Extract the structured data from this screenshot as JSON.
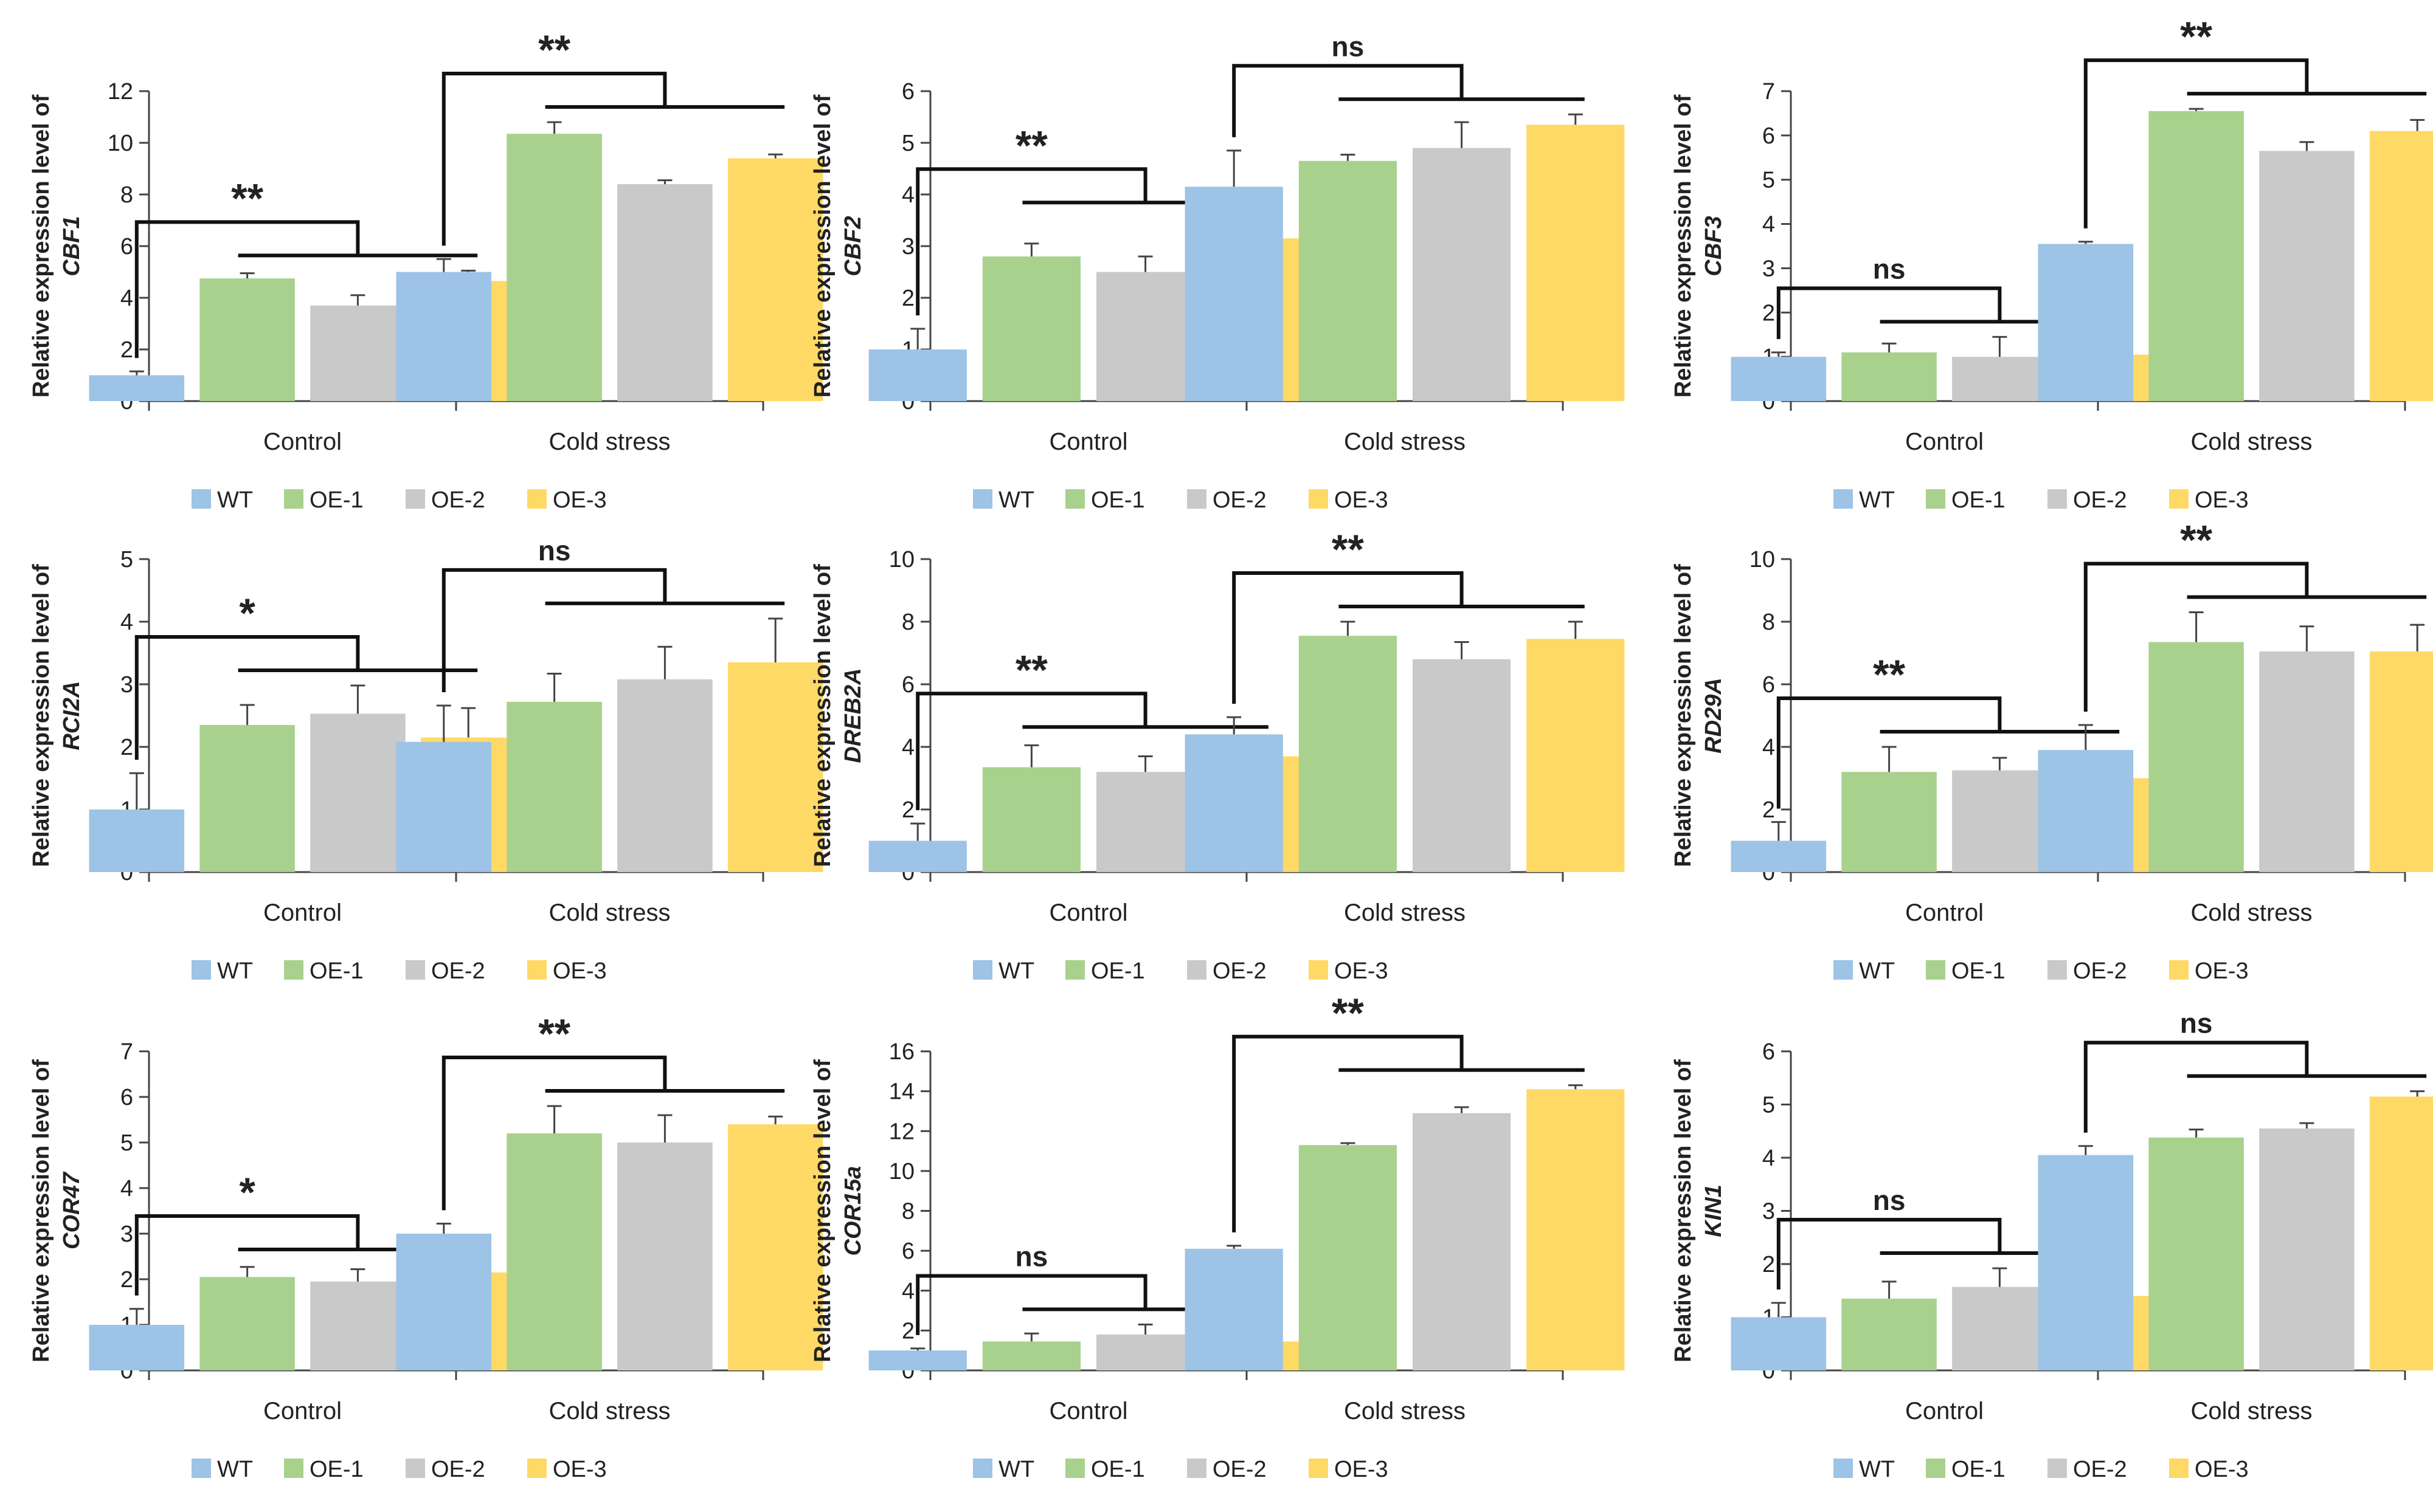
{
  "figure": {
    "groups": [
      "Control",
      "Cold stress"
    ],
    "legend": [
      "WT",
      "OE-1",
      "OE-2",
      "OE-3"
    ],
    "ylabel_prefix": "Relative expression level of"
  },
  "colors": {
    "WT": "#9dc3e6",
    "OE-1": "#a9d18e",
    "OE-2": "#c9c9c9",
    "OE-3": "#ffd966",
    "axis": "#444444",
    "text": "#222222"
  },
  "chart_data": [
    {
      "type": "bar",
      "gene": "CBF1",
      "ylim": [
        0,
        12
      ],
      "yticks": [
        0,
        2,
        4,
        6,
        8,
        10,
        12
      ],
      "categories": [
        "Control",
        "Cold stress"
      ],
      "series": [
        {
          "name": "WT",
          "values": [
            1.0,
            5.0
          ],
          "errors": [
            0.15,
            0.5
          ]
        },
        {
          "name": "OE-1",
          "values": [
            4.75,
            10.35
          ],
          "errors": [
            0.2,
            0.45
          ]
        },
        {
          "name": "OE-2",
          "values": [
            3.7,
            8.4
          ],
          "errors": [
            0.4,
            0.15
          ]
        },
        {
          "name": "OE-3",
          "values": [
            4.65,
            9.4
          ],
          "errors": [
            0.4,
            0.15
          ]
        }
      ],
      "significance": [
        "**",
        "**"
      ]
    },
    {
      "type": "bar",
      "gene": "CBF2",
      "ylim": [
        0,
        6
      ],
      "yticks": [
        0,
        1,
        2,
        3,
        4,
        5,
        6
      ],
      "categories": [
        "Control",
        "Cold stress"
      ],
      "series": [
        {
          "name": "WT",
          "values": [
            1.0,
            4.15
          ],
          "errors": [
            0.4,
            0.7
          ]
        },
        {
          "name": "OE-1",
          "values": [
            2.8,
            4.65
          ],
          "errors": [
            0.25,
            0.12
          ]
        },
        {
          "name": "OE-2",
          "values": [
            2.5,
            4.9
          ],
          "errors": [
            0.3,
            0.5
          ]
        },
        {
          "name": "OE-3",
          "values": [
            3.15,
            5.35
          ],
          "errors": [
            0.4,
            0.2
          ]
        }
      ],
      "significance": [
        "**",
        "ns"
      ]
    },
    {
      "type": "bar",
      "gene": "CBF3",
      "ylim": [
        0,
        7
      ],
      "yticks": [
        0,
        1,
        2,
        3,
        4,
        5,
        6,
        7
      ],
      "categories": [
        "Control",
        "Cold stress"
      ],
      "series": [
        {
          "name": "WT",
          "values": [
            1.0,
            3.55
          ],
          "errors": [
            0.1,
            0.05
          ]
        },
        {
          "name": "OE-1",
          "values": [
            1.1,
            6.55
          ],
          "errors": [
            0.2,
            0.05
          ]
        },
        {
          "name": "OE-2",
          "values": [
            1.0,
            5.65
          ],
          "errors": [
            0.45,
            0.2
          ]
        },
        {
          "name": "OE-3",
          "values": [
            1.05,
            6.1
          ],
          "errors": [
            0.25,
            0.25
          ]
        }
      ],
      "significance": [
        "ns",
        "**"
      ]
    },
    {
      "type": "bar",
      "gene": "RCI2A",
      "ylim": [
        0,
        5
      ],
      "yticks": [
        0,
        1,
        2,
        3,
        4,
        5
      ],
      "categories": [
        "Control",
        "Cold stress"
      ],
      "series": [
        {
          "name": "WT",
          "values": [
            1.0,
            2.08
          ],
          "errors": [
            0.58,
            0.58
          ]
        },
        {
          "name": "OE-1",
          "values": [
            2.35,
            2.72
          ],
          "errors": [
            0.32,
            0.45
          ]
        },
        {
          "name": "OE-2",
          "values": [
            2.53,
            3.08
          ],
          "errors": [
            0.45,
            0.52
          ]
        },
        {
          "name": "OE-3",
          "values": [
            2.15,
            3.35
          ],
          "errors": [
            0.47,
            0.7
          ]
        }
      ],
      "significance": [
        "*",
        "ns"
      ]
    },
    {
      "type": "bar",
      "gene": "DREB2A",
      "ylim": [
        0,
        10
      ],
      "yticks": [
        0,
        2,
        4,
        6,
        8,
        10
      ],
      "categories": [
        "Control",
        "Cold stress"
      ],
      "series": [
        {
          "name": "WT",
          "values": [
            1.0,
            4.4
          ],
          "errors": [
            0.55,
            0.55
          ]
        },
        {
          "name": "OE-1",
          "values": [
            3.35,
            7.55
          ],
          "errors": [
            0.7,
            0.45
          ]
        },
        {
          "name": "OE-2",
          "values": [
            3.2,
            6.8
          ],
          "errors": [
            0.5,
            0.55
          ]
        },
        {
          "name": "OE-3",
          "values": [
            3.7,
            7.45
          ],
          "errors": [
            0.45,
            0.55
          ]
        }
      ],
      "significance": [
        "**",
        "**"
      ]
    },
    {
      "type": "bar",
      "gene": "RD29A",
      "ylim": [
        0,
        10
      ],
      "yticks": [
        0,
        2,
        4,
        6,
        8,
        10
      ],
      "categories": [
        "Control",
        "Cold stress"
      ],
      "series": [
        {
          "name": "WT",
          "values": [
            1.0,
            3.9
          ],
          "errors": [
            0.6,
            0.8
          ]
        },
        {
          "name": "OE-1",
          "values": [
            3.2,
            7.35
          ],
          "errors": [
            0.8,
            0.95
          ]
        },
        {
          "name": "OE-2",
          "values": [
            3.25,
            7.05
          ],
          "errors": [
            0.4,
            0.8
          ]
        },
        {
          "name": "OE-3",
          "values": [
            3.0,
            7.05
          ],
          "errors": [
            0.5,
            0.85
          ]
        }
      ],
      "significance": [
        "**",
        "**"
      ]
    },
    {
      "type": "bar",
      "gene": "COR47",
      "ylim": [
        0,
        7
      ],
      "yticks": [
        0,
        1,
        2,
        3,
        4,
        5,
        6,
        7
      ],
      "categories": [
        "Control",
        "Cold stress"
      ],
      "series": [
        {
          "name": "WT",
          "values": [
            1.0,
            3.0
          ],
          "errors": [
            0.35,
            0.22
          ]
        },
        {
          "name": "OE-1",
          "values": [
            2.05,
            5.2
          ],
          "errors": [
            0.22,
            0.6
          ]
        },
        {
          "name": "OE-2",
          "values": [
            1.95,
            5.0
          ],
          "errors": [
            0.27,
            0.6
          ]
        },
        {
          "name": "OE-3",
          "values": [
            2.15,
            5.4
          ],
          "errors": [
            0.17,
            0.17
          ]
        }
      ],
      "significance": [
        "*",
        "**"
      ]
    },
    {
      "type": "bar",
      "gene": "COR15a",
      "ylim": [
        0,
        16
      ],
      "yticks": [
        0,
        2,
        4,
        6,
        8,
        10,
        12,
        14,
        16
      ],
      "categories": [
        "Control",
        "Cold stress"
      ],
      "series": [
        {
          "name": "WT",
          "values": [
            1.0,
            6.1
          ],
          "errors": [
            0.1,
            0.15
          ]
        },
        {
          "name": "OE-1",
          "values": [
            1.45,
            11.3
          ],
          "errors": [
            0.4,
            0.1
          ]
        },
        {
          "name": "OE-2",
          "values": [
            1.8,
            12.9
          ],
          "errors": [
            0.5,
            0.3
          ]
        },
        {
          "name": "OE-3",
          "values": [
            1.45,
            14.1
          ],
          "errors": [
            0.2,
            0.2
          ]
        }
      ],
      "significance": [
        "ns",
        "**"
      ]
    },
    {
      "type": "bar",
      "gene": "KIN1",
      "ylim": [
        0,
        6
      ],
      "yticks": [
        0,
        1,
        2,
        3,
        4,
        5,
        6
      ],
      "categories": [
        "Control",
        "Cold stress"
      ],
      "series": [
        {
          "name": "WT",
          "values": [
            1.0,
            4.05
          ],
          "errors": [
            0.27,
            0.17
          ]
        },
        {
          "name": "OE-1",
          "values": [
            1.35,
            4.38
          ],
          "errors": [
            0.32,
            0.15
          ]
        },
        {
          "name": "OE-2",
          "values": [
            1.57,
            4.55
          ],
          "errors": [
            0.35,
            0.1
          ]
        },
        {
          "name": "OE-3",
          "values": [
            1.4,
            5.15
          ],
          "errors": [
            0.15,
            0.1
          ]
        }
      ],
      "significance": [
        "ns",
        "ns"
      ]
    }
  ]
}
